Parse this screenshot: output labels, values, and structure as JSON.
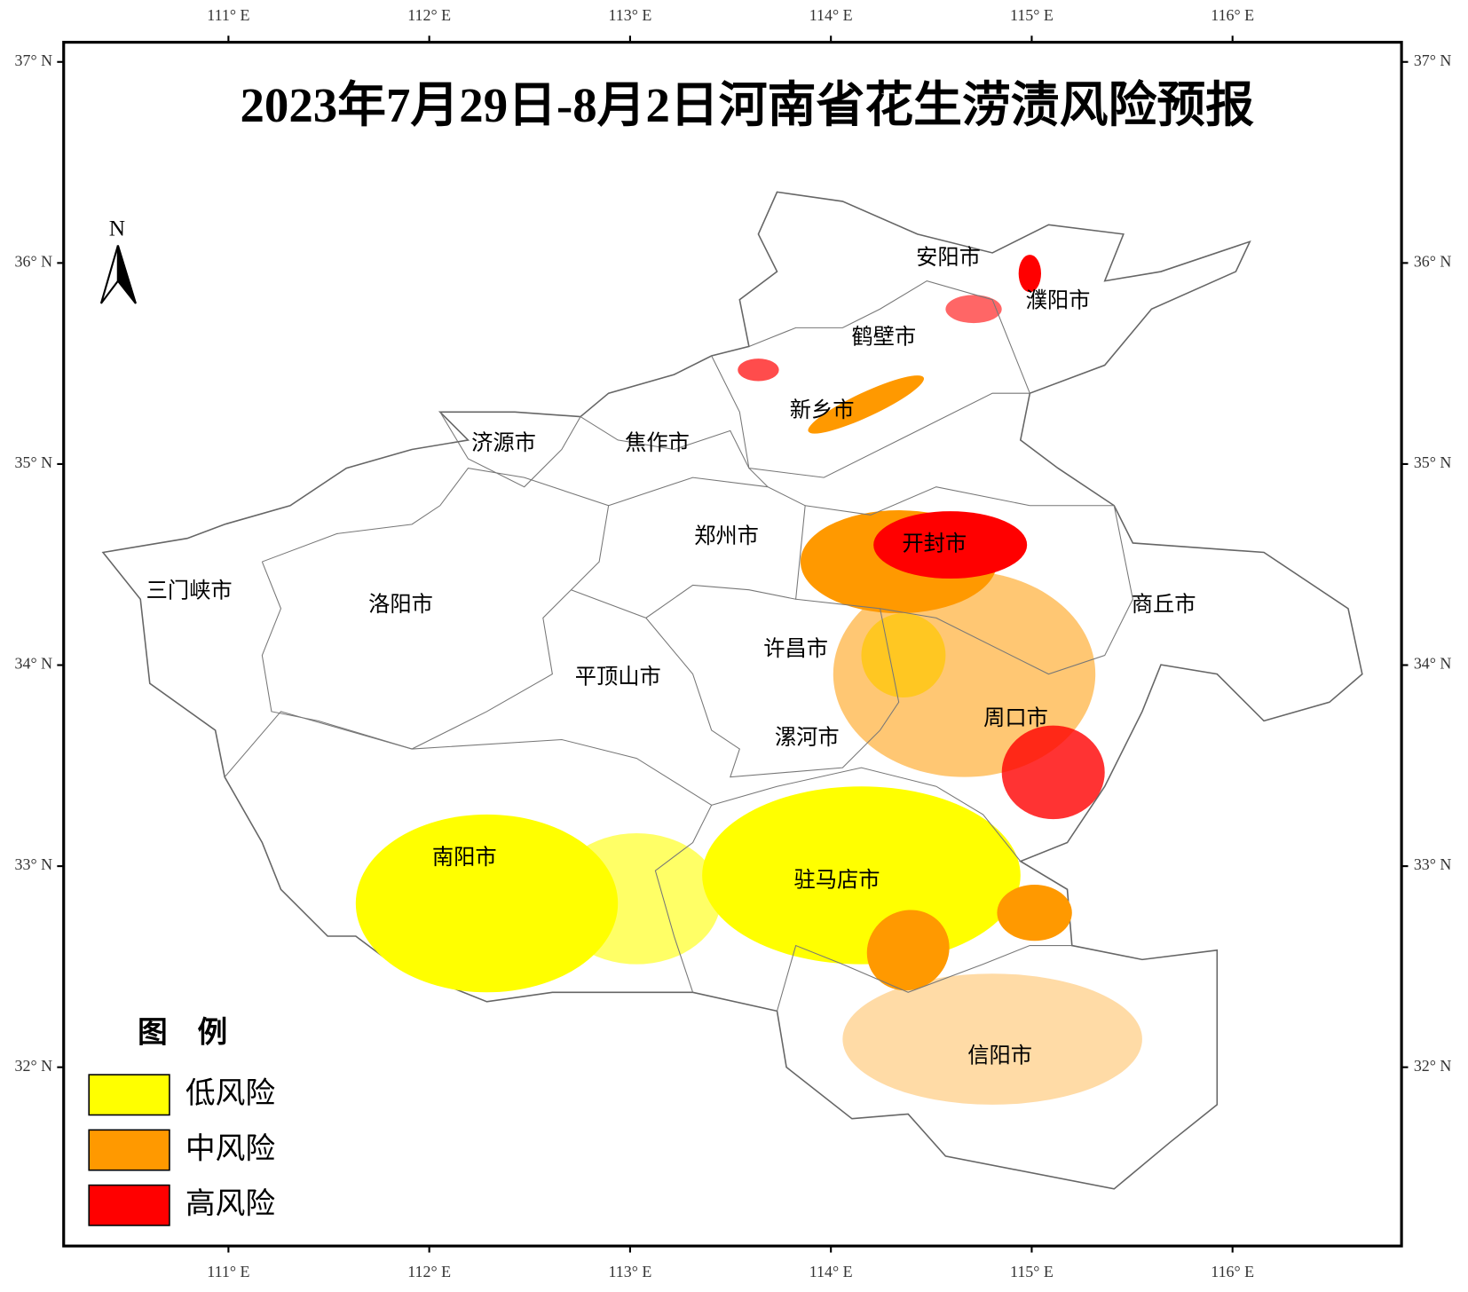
{
  "title": "2023年7月29日-8月2日河南省花生涝渍风险预报",
  "lon_ticks": [
    "111° E",
    "112° E",
    "113° E",
    "114° E",
    "115° E",
    "116° E"
  ],
  "lat_ticks": [
    "37° N",
    "36° N",
    "35° N",
    "34° N",
    "33° N",
    "32° N"
  ],
  "north_label": "N",
  "cities": [
    "安阳市",
    "濮阳市",
    "鹤壁市",
    "新乡市",
    "济源市",
    "焦作市",
    "郑州市",
    "开封市",
    "三门峡市",
    "洛阳市",
    "商丘市",
    "许昌市",
    "平顶山市",
    "周口市",
    "漯河市",
    "南阳市",
    "驻马店市",
    "信阳市"
  ],
  "legend": {
    "title": "图　例",
    "items": [
      {
        "label": "低风险",
        "color": "#ffff00"
      },
      {
        "label": "中风险",
        "color": "#ff9900"
      },
      {
        "label": "高风险",
        "color": "#ff0000"
      }
    ]
  }
}
